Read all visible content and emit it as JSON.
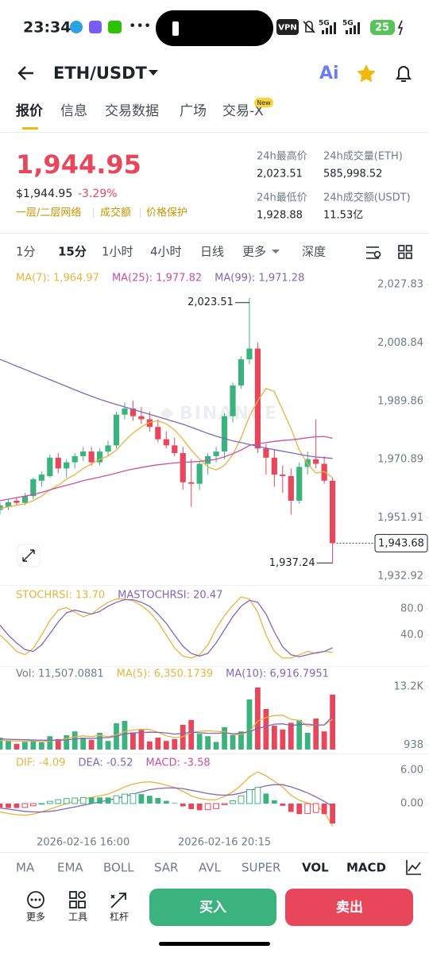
{
  "status": {
    "time": "23:34",
    "vpn": "VPN",
    "network": [
      "5G",
      "5G"
    ],
    "battery": "25"
  },
  "header": {
    "pair": "ETH/USDT",
    "ai": "Ai"
  },
  "tabs": {
    "items": [
      "报价",
      "信息",
      "交易数据",
      "广场",
      "交易-X"
    ],
    "badge": "New"
  },
  "ticker": {
    "price": "1,944.95",
    "fiat": "$1,944.95",
    "change": "-3.29%",
    "tags": [
      "一层/二层网络",
      "成交额",
      "价格保护"
    ],
    "stats": [
      {
        "label": "24h最高价",
        "value": "2,023.51"
      },
      {
        "label": "24h成交量(ETH)",
        "value": "585,998.52"
      },
      {
        "label": "24h最低价",
        "value": "1,928.88"
      },
      {
        "label": "24h成交额(USDT)",
        "value": "11.53亿"
      }
    ]
  },
  "intervals": [
    "1分",
    "15分",
    "1小时",
    "4小时",
    "日线",
    "更多",
    "深度"
  ],
  "chart_data": [
    {
      "type": "candlestick",
      "watermark": "BINANCE",
      "xlim": [
        0,
        51.6
      ],
      "ylim": [
        1932.92,
        2027.83
      ],
      "yticks": [
        {
          "value": 2027.83,
          "label": "2,027.83"
        },
        {
          "value": 2008.84,
          "label": "2,008.84"
        },
        {
          "value": 1989.86,
          "label": "1,989.86"
        },
        {
          "value": 1970.89,
          "label": "1,970.89"
        },
        {
          "value": 1951.91,
          "label": "1,951.91"
        },
        {
          "value": 1932.92,
          "label": "1,932.92"
        }
      ],
      "up_color": "#3bb37f",
      "down_color": "#e8475b",
      "candles": {
        "open": [
          1954.5,
          1955.5,
          1957.5,
          1956.8,
          1959,
          1964,
          1965.5,
          1971.5,
          1968,
          1970,
          1972,
          1973.5,
          1970,
          1973.5,
          1975.5,
          1985.5,
          1987.5,
          1985,
          1984,
          1981.5,
          1977.5,
          1975.5,
          1973,
          1963.5,
          1963,
          1969.5,
          1972,
          1973.5,
          1985,
          1995,
          2003.5,
          2007,
          1974.5,
          1971.5,
          1966,
          1965.5,
          1957.5,
          1968.5,
          1971,
          1969.5,
          1964
        ],
        "high": [
          1957,
          1958,
          1958.5,
          1960,
          1965,
          1967,
          1972.5,
          1973,
          1971,
          1973,
          1975,
          1975,
          1974.5,
          1977,
          1986.5,
          1989.5,
          1990,
          1988,
          1986.5,
          1984,
          1980,
          1978,
          1975,
          1971,
          1970.5,
          1973,
          1975,
          1986,
          1996,
          2004.5,
          2023.51,
          2009,
          1976,
          1974,
          1969,
          1968,
          1970,
          1973.5,
          1984,
          1972,
          1965
        ],
        "low": [
          1953,
          1954.5,
          1956,
          1956,
          1958,
          1962,
          1965,
          1966.5,
          1965,
          1968,
          1970.5,
          1968.8,
          1969,
          1972,
          1974.5,
          1984,
          1983.5,
          1982.5,
          1980,
          1976.5,
          1974.5,
          1972,
          1961,
          1955.5,
          1961,
          1966,
          1970,
          1971,
          1983,
          1994,
          2002,
          1973,
          1966,
          1962,
          1960,
          1952.93,
          1956.5,
          1966,
          1968,
          1963,
          1937.24
        ],
        "close": [
          1956,
          1957,
          1956.8,
          1959,
          1964.5,
          1966,
          1971.5,
          1968,
          1970,
          1972,
          1973.5,
          1970,
          1973.5,
          1975.5,
          1985.5,
          1987.5,
          1985,
          1984,
          1981.5,
          1977.5,
          1975.5,
          1973,
          1963.5,
          1963,
          1969.5,
          1972,
          1973.5,
          1985,
          1995,
          2003.5,
          2007,
          1974.5,
          1971.5,
          1966,
          1965.5,
          1957.5,
          1968.5,
          1971,
          1969.5,
          1964,
          1943.68
        ]
      },
      "series": [
        {
          "name": "MA(7): 1,964.97",
          "color": "#e9b43c",
          "values": [
            1955,
            1955.5,
            1956,
            1956.5,
            1957.5,
            1959,
            1961,
            1962.5,
            1964.5,
            1966,
            1968,
            1969.5,
            1971,
            1972,
            1974,
            1977,
            1979.5,
            1981.5,
            1983,
            1983.5,
            1982.5,
            1980.5,
            1977.5,
            1974,
            1971,
            1968.5,
            1967.5,
            1969,
            1972.5,
            1978,
            1985,
            1990,
            1994,
            1993,
            1987,
            1981,
            1974,
            1969.5,
            1966.5,
            1967,
            1964.97
          ]
        },
        {
          "name": "MA(25): 1,977.82",
          "color": "#c94fa6",
          "values": [
            1957.5,
            1958,
            1958.5,
            1959,
            1959.5,
            1960.2,
            1961,
            1961.8,
            1962.5,
            1963.2,
            1964,
            1964.6,
            1965.2,
            1965.8,
            1966.5,
            1967.2,
            1967.8,
            1968.3,
            1968.8,
            1969.2,
            1969.5,
            1969.8,
            1970,
            1970.1,
            1970.3,
            1970.6,
            1971,
            1971.8,
            1972.8,
            1974,
            1975.5,
            1976,
            1976.4,
            1976.8,
            1977.1,
            1977.3,
            1977.6,
            1978,
            1978.3,
            1978.4,
            1977.82
          ]
        },
        {
          "name": "MA(99): 1,971.28",
          "color": "#7f67bd",
          "values": [
            2003.5,
            2002.4,
            2001.3,
            2000.2,
            1999.1,
            1998,
            1996.9,
            1995.8,
            1994.7,
            1993.6,
            1992.5,
            1991.5,
            1990.5,
            1989.6,
            1988.8,
            1988,
            1987.2,
            1986.4,
            1985.6,
            1984.8,
            1984,
            1983.2,
            1982.4,
            1981.4,
            1980.4,
            1979.4,
            1978.5,
            1977.7,
            1977,
            1976.4,
            1975.8,
            1975.2,
            1974.6,
            1974.1,
            1973.6,
            1973.1,
            1972.6,
            1972.1,
            1971.7,
            1971.5,
            1971.28
          ]
        }
      ],
      "high_label": {
        "value": 2023.51,
        "label": "2,023.51"
      },
      "low_label": {
        "value": 1937.24,
        "label": "1,937.24"
      },
      "last_price": {
        "value": 1943.68,
        "label": "1,943.68"
      }
    },
    {
      "type": "line",
      "xlim": [
        0,
        51.6
      ],
      "ylim": [
        0,
        100
      ],
      "yticks": [
        {
          "value": 80,
          "label": "80.0"
        },
        {
          "value": 40,
          "label": "40.0"
        }
      ],
      "series": [
        {
          "name": "STOCHRSI: 13.70",
          "color": "#e9b43c",
          "values": [
            40,
            28,
            15,
            10,
            20,
            40,
            62,
            78,
            82,
            75,
            68,
            72,
            82,
            90,
            95,
            95,
            92,
            85,
            75,
            60,
            40,
            20,
            8,
            5,
            10,
            25,
            50,
            70,
            85,
            98,
            95,
            75,
            40,
            15,
            5,
            5,
            10,
            15,
            12,
            15,
            13.7
          ]
        },
        {
          "name": "MASTOCHRSI: 20.47",
          "color": "#7f67bd",
          "values": [
            55,
            40,
            28,
            18,
            15,
            25,
            42,
            60,
            74,
            78,
            75,
            72,
            76,
            84,
            90,
            94,
            94,
            90,
            84,
            72,
            58,
            40,
            23,
            12,
            8,
            12,
            28,
            48,
            68,
            84,
            93,
            90,
            72,
            45,
            22,
            10,
            7,
            10,
            13,
            15,
            20.47
          ]
        }
      ]
    },
    {
      "type": "bar",
      "xlim": [
        0,
        51.6
      ],
      "ylim": [
        0,
        15500
      ],
      "yticks": [
        {
          "value": 13200,
          "label": "13.2K"
        },
        938
      ],
      "color_by": "candle",
      "up_color": "#3bb37f",
      "down_color": "#e8475b",
      "series": [
        {
          "name": "Vol: 11,507.0881",
          "type": "bar",
          "color": "#707a8a",
          "values": [
            2500,
            1800,
            1200,
            1600,
            2000,
            1500,
            2800,
            2200,
            3000,
            3800,
            2500,
            2000,
            3500,
            1800,
            5500,
            6000,
            3600,
            4300,
            1700,
            2500,
            1800,
            2200,
            5200,
            6200,
            3300,
            2800,
            1600,
            4700,
            3000,
            3800,
            10500,
            13000,
            8500,
            5000,
            4200,
            5600,
            6200,
            3500,
            6500,
            3800,
            11507.0881
          ]
        },
        {
          "name": "MA(5): 6,350.1739",
          "color": "#e9b43c",
          "values": [
            1900,
            1850,
            1800,
            1750,
            1820,
            1620,
            1820,
            1940,
            2300,
            2660,
            2860,
            2700,
            2960,
            2720,
            3060,
            3760,
            4080,
            4240,
            4220,
            3620,
            2880,
            2500,
            2680,
            3560,
            3840,
            3940,
            3820,
            3720,
            3080,
            3180,
            3780,
            5960,
            6720,
            7120,
            7200,
            6340,
            6100,
            4900,
            5200,
            5120,
            6350.1739
          ]
        },
        {
          "name": "MA(10): 6,916.7951",
          "color": "#7f67bd",
          "values": [
            2200,
            2150,
            2100,
            2050,
            2000,
            1950,
            1950,
            1960,
            2000,
            2240,
            2360,
            2300,
            2450,
            2500,
            2800,
            3300,
            3460,
            3560,
            3640,
            3600,
            3480,
            3240,
            3380,
            3640,
            3520,
            3410,
            3400,
            3520,
            3320,
            3420,
            3780,
            4360,
            4880,
            5310,
            5380,
            5060,
            5220,
            5310,
            5140,
            5160,
            6916.7951
          ]
        }
      ]
    },
    {
      "type": "bar",
      "xlim": [
        0,
        51.6
      ],
      "ylim": [
        -5.6,
        8
      ],
      "yticks": [
        {
          "value": 6,
          "label": "6.00"
        },
        {
          "value": 0,
          "label": "0.00"
        }
      ],
      "xticks": [
        {
          "value": 10,
          "label": "2026-02-16 16:00"
        },
        {
          "value": 27,
          "label": "2026-02-16 20:15"
        }
      ],
      "color_by": "sign",
      "hollow_when_rising": true,
      "up_color": "#3bb37f",
      "down_color": "#e8475b",
      "series": [
        {
          "name": "DIF: -4.09",
          "color": "#e9b43c",
          "values": [
            -1.5,
            -1.8,
            -2,
            -2.1,
            -1.9,
            -1.5,
            -1,
            -0.5,
            0,
            0.4,
            0.8,
            1.1,
            1.4,
            1.7,
            2.3,
            3,
            3.5,
            3.8,
            3.9,
            3.7,
            3.3,
            2.9,
            2.2,
            1.4,
            0.9,
            0.7,
            0.7,
            1.3,
            2.1,
            3.3,
            4.8,
            5.7,
            5,
            4,
            3,
            1.5,
            0.6,
            0.1,
            -0.4,
            -1.5,
            -4.09
          ]
        },
        {
          "name": "DEA: -0.52",
          "color": "#7f67bd",
          "values": [
            -0.8,
            -1,
            -1.2,
            -1.4,
            -1.5,
            -1.5,
            -1.4,
            -1.2,
            -0.9,
            -0.6,
            -0.3,
            0,
            0.3,
            0.6,
            0.9,
            1.3,
            1.7,
            2.1,
            2.5,
            2.7,
            2.8,
            2.8,
            2.7,
            2.4,
            2.1,
            1.8,
            1.6,
            1.5,
            1.6,
            1.9,
            2.3,
            2.8,
            3.2,
            3.4,
            3.4,
            3,
            2.5,
            1.9,
            1.2,
            0.4,
            -0.52
          ]
        },
        {
          "name": "MACD: -3.58",
          "type": "bar",
          "color": "#c94fa6",
          "values": [
            -0.7,
            -0.8,
            -0.8,
            -0.7,
            -0.4,
            0,
            0.4,
            0.7,
            0.9,
            1,
            1.1,
            1.1,
            1.1,
            1.1,
            1.4,
            1.7,
            1.8,
            1.7,
            1.4,
            1,
            0.5,
            0.1,
            -0.5,
            -1,
            -1.2,
            -1.1,
            -0.9,
            -0.2,
            0.5,
            1.4,
            2.5,
            2.9,
            1.8,
            0.6,
            -0.4,
            -1.5,
            -1.9,
            -1.8,
            -1.6,
            -1.9,
            -3.58
          ]
        }
      ]
    }
  ],
  "indicators": [
    "MA",
    "EMA",
    "BOLL",
    "SAR",
    "AVL",
    "SUPER",
    "VOL",
    "MACD"
  ],
  "toolbar": {
    "items": [
      "更多",
      "工具",
      "杠杆"
    ],
    "buy": "买入",
    "sell": "卖出"
  }
}
